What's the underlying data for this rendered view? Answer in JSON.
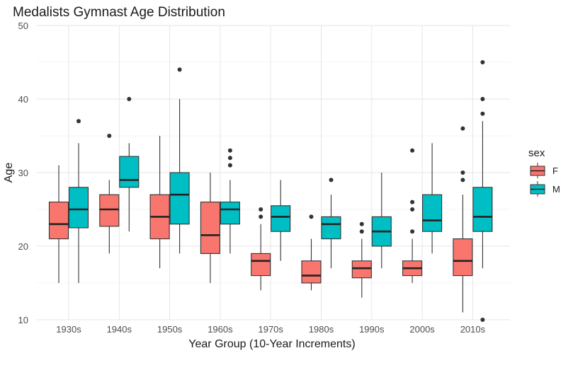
{
  "chart_data": {
    "type": "boxplot",
    "title": "Medalists Gymnast Age Distribution",
    "xlabel": "Year Group (10-Year Increments)",
    "ylabel": "Age",
    "ylim": [
      10,
      50
    ],
    "yticks": [
      10,
      20,
      30,
      40,
      50
    ],
    "grid": true,
    "legend": {
      "title": "sex",
      "position": "right",
      "entries": [
        "F",
        "M"
      ]
    },
    "colors": {
      "F": "#F8766D",
      "M": "#00BFC4"
    },
    "categories": [
      "1930s",
      "1940s",
      "1950s",
      "1960s",
      "1970s",
      "1980s",
      "1990s",
      "2000s",
      "2010s"
    ],
    "series": [
      {
        "name": "F",
        "boxes": [
          {
            "min": 15,
            "q1": 21,
            "median": 23,
            "q3": 26,
            "max": 31,
            "outliers": []
          },
          {
            "min": 19,
            "q1": 22.7,
            "median": 25,
            "q3": 27,
            "max": 29,
            "outliers": [
              35
            ]
          },
          {
            "min": 17,
            "q1": 21,
            "median": 24,
            "q3": 27,
            "max": 35,
            "outliers": []
          },
          {
            "min": 15,
            "q1": 19,
            "median": 21.5,
            "q3": 26,
            "max": 30,
            "outliers": []
          },
          {
            "min": 14,
            "q1": 16,
            "median": 18,
            "q3": 19,
            "max": 23,
            "outliers": [
              24,
              25
            ]
          },
          {
            "min": 14,
            "q1": 15,
            "median": 16,
            "q3": 18,
            "max": 21,
            "outliers": [
              24
            ]
          },
          {
            "min": 13,
            "q1": 15.7,
            "median": 17,
            "q3": 18,
            "max": 21,
            "outliers": [
              22,
              23
            ]
          },
          {
            "min": 15,
            "q1": 16,
            "median": 17,
            "q3": 18,
            "max": 21,
            "outliers": [
              22,
              25,
              26,
              33
            ]
          },
          {
            "min": 11,
            "q1": 16,
            "median": 18,
            "q3": 21,
            "max": 27,
            "outliers": [
              29,
              30,
              36
            ]
          }
        ]
      },
      {
        "name": "M",
        "boxes": [
          {
            "min": 15,
            "q1": 22.5,
            "median": 25,
            "q3": 28,
            "max": 34,
            "outliers": [
              37
            ]
          },
          {
            "min": 22,
            "q1": 28,
            "median": 29,
            "q3": 32.2,
            "max": 34,
            "outliers": [
              40
            ]
          },
          {
            "min": 19,
            "q1": 23,
            "median": 27,
            "q3": 30,
            "max": 40,
            "outliers": [
              44
            ]
          },
          {
            "min": 19,
            "q1": 23,
            "median": 25,
            "q3": 26,
            "max": 29,
            "outliers": [
              31,
              32,
              33
            ]
          },
          {
            "min": 18,
            "q1": 22,
            "median": 24,
            "q3": 25.5,
            "max": 29,
            "outliers": []
          },
          {
            "min": 17,
            "q1": 21,
            "median": 23,
            "q3": 24,
            "max": 27,
            "outliers": [
              29
            ]
          },
          {
            "min": 17,
            "q1": 20,
            "median": 22,
            "q3": 24,
            "max": 30,
            "outliers": []
          },
          {
            "min": 19,
            "q1": 22,
            "median": 23.5,
            "q3": 27,
            "max": 34,
            "outliers": []
          },
          {
            "min": 17,
            "q1": 22,
            "median": 24,
            "q3": 28,
            "max": 37,
            "outliers": [
              10,
              38,
              40,
              45
            ]
          }
        ]
      }
    ]
  }
}
